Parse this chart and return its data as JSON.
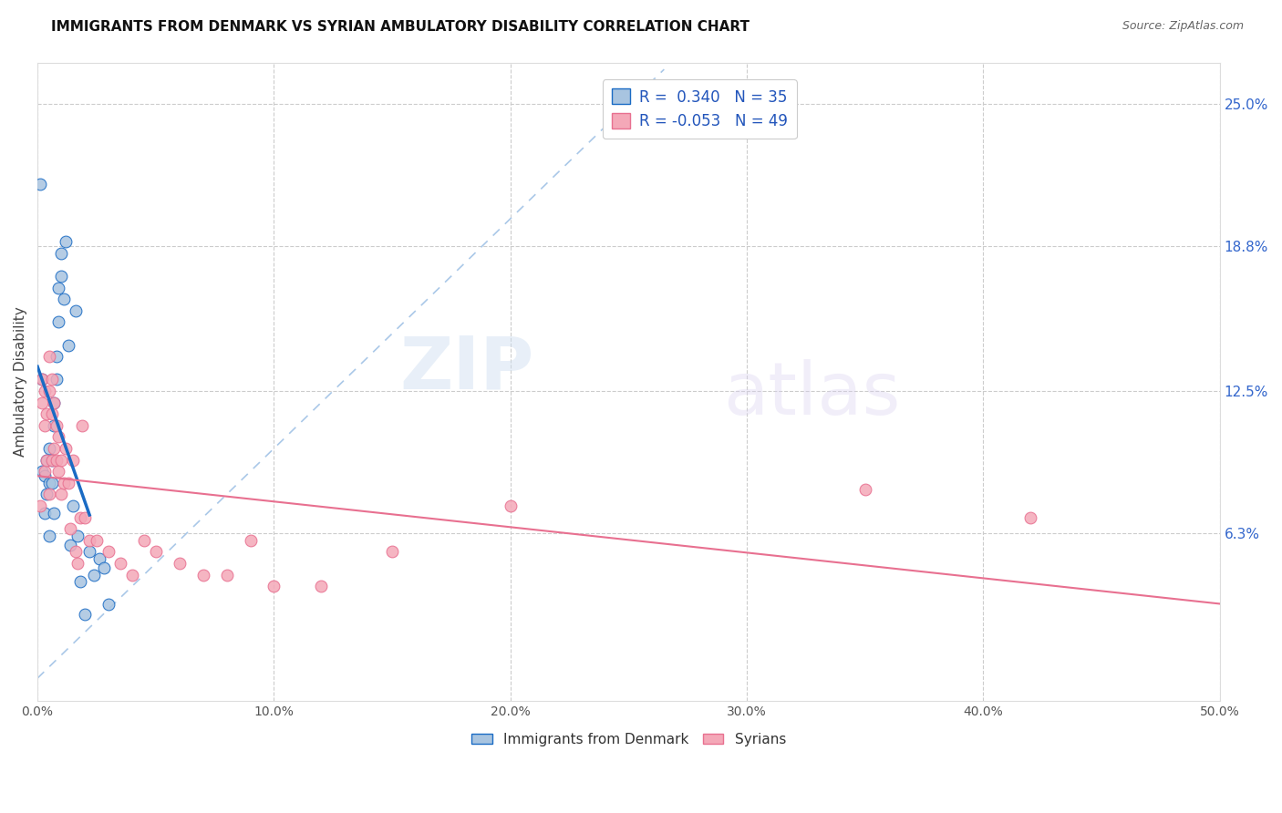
{
  "title": "IMMIGRANTS FROM DENMARK VS SYRIAN AMBULATORY DISABILITY CORRELATION CHART",
  "source": "Source: ZipAtlas.com",
  "ylabel": "Ambulatory Disability",
  "yticks": [
    "6.3%",
    "12.5%",
    "18.8%",
    "25.0%"
  ],
  "ytick_vals": [
    0.063,
    0.125,
    0.188,
    0.25
  ],
  "xlim": [
    0.0,
    0.5
  ],
  "ylim": [
    -0.01,
    0.268
  ],
  "r_denmark": 0.34,
  "n_denmark": 35,
  "r_syrians": -0.053,
  "n_syrians": 49,
  "legend_labels": [
    "Immigrants from Denmark",
    "Syrians"
  ],
  "color_denmark": "#a8c4e0",
  "color_syrians": "#f4a8b8",
  "line_color_denmark": "#1a6bc4",
  "line_color_syrians": "#e87090",
  "trendline_dashed_color": "#aac8e8",
  "watermark_zip": "ZIP",
  "watermark_atlas": "atlas",
  "background_color": "#ffffff",
  "denmark_x": [
    0.001,
    0.002,
    0.002,
    0.003,
    0.003,
    0.004,
    0.004,
    0.005,
    0.005,
    0.005,
    0.006,
    0.006,
    0.007,
    0.007,
    0.007,
    0.008,
    0.008,
    0.009,
    0.009,
    0.01,
    0.01,
    0.011,
    0.012,
    0.013,
    0.014,
    0.015,
    0.016,
    0.017,
    0.018,
    0.02,
    0.022,
    0.024,
    0.026,
    0.028,
    0.03
  ],
  "denmark_y": [
    0.215,
    0.13,
    0.09,
    0.088,
    0.072,
    0.095,
    0.08,
    0.1,
    0.085,
    0.062,
    0.095,
    0.085,
    0.12,
    0.11,
    0.072,
    0.14,
    0.13,
    0.17,
    0.155,
    0.185,
    0.175,
    0.165,
    0.19,
    0.145,
    0.058,
    0.075,
    0.16,
    0.062,
    0.042,
    0.028,
    0.055,
    0.045,
    0.052,
    0.048,
    0.032
  ],
  "syrians_x": [
    0.001,
    0.002,
    0.002,
    0.003,
    0.003,
    0.003,
    0.004,
    0.004,
    0.005,
    0.005,
    0.005,
    0.006,
    0.006,
    0.006,
    0.007,
    0.007,
    0.008,
    0.008,
    0.009,
    0.009,
    0.01,
    0.01,
    0.011,
    0.012,
    0.013,
    0.014,
    0.015,
    0.016,
    0.017,
    0.018,
    0.019,
    0.02,
    0.022,
    0.025,
    0.03,
    0.035,
    0.04,
    0.045,
    0.05,
    0.06,
    0.07,
    0.08,
    0.09,
    0.1,
    0.12,
    0.15,
    0.2,
    0.35,
    0.42
  ],
  "syrians_y": [
    0.075,
    0.13,
    0.12,
    0.125,
    0.11,
    0.09,
    0.115,
    0.095,
    0.14,
    0.125,
    0.08,
    0.13,
    0.115,
    0.095,
    0.12,
    0.1,
    0.11,
    0.095,
    0.105,
    0.09,
    0.095,
    0.08,
    0.085,
    0.1,
    0.085,
    0.065,
    0.095,
    0.055,
    0.05,
    0.07,
    0.11,
    0.07,
    0.06,
    0.06,
    0.055,
    0.05,
    0.045,
    0.06,
    0.055,
    0.05,
    0.045,
    0.045,
    0.06,
    0.04,
    0.04,
    0.055,
    0.075,
    0.082,
    0.07
  ]
}
